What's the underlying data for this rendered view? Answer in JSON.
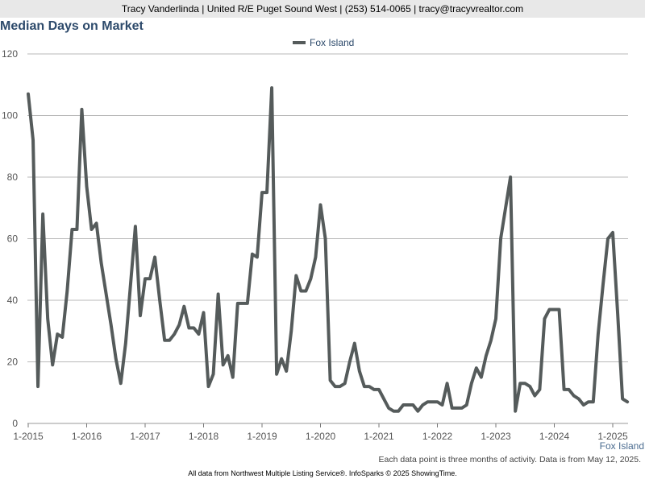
{
  "header": {
    "contact_line": "Tracy Vanderlinda | United R/E Puget Sound West | (253) 514-0065 | tracy@tracyvrealtor.com"
  },
  "chart_data": {
    "type": "line",
    "title": "Median Days on Market",
    "xlabel": "",
    "ylabel": "",
    "ylim": [
      0,
      120
    ],
    "y_ticks": [
      0,
      20,
      40,
      60,
      80,
      100,
      120
    ],
    "x_tick_labels": [
      "1-2015",
      "1-2016",
      "1-2017",
      "1-2018",
      "1-2019",
      "1-2020",
      "1-2021",
      "1-2022",
      "1-2023",
      "1-2024",
      "1-2025"
    ],
    "grid": true,
    "legend_position": "top-center",
    "series_color": "#555b5b",
    "series": [
      {
        "name": "Fox Island",
        "x": [
          "1-2015",
          "2-2015",
          "3-2015",
          "4-2015",
          "5-2015",
          "6-2015",
          "7-2015",
          "8-2015",
          "9-2015",
          "10-2015",
          "11-2015",
          "12-2015",
          "1-2016",
          "2-2016",
          "3-2016",
          "4-2016",
          "5-2016",
          "6-2016",
          "7-2016",
          "8-2016",
          "9-2016",
          "10-2016",
          "11-2016",
          "12-2016",
          "1-2017",
          "2-2017",
          "3-2017",
          "4-2017",
          "5-2017",
          "6-2017",
          "7-2017",
          "8-2017",
          "9-2017",
          "10-2017",
          "11-2017",
          "12-2017",
          "1-2018",
          "2-2018",
          "3-2018",
          "4-2018",
          "5-2018",
          "6-2018",
          "7-2018",
          "8-2018",
          "9-2018",
          "10-2018",
          "11-2018",
          "12-2018",
          "1-2019",
          "2-2019",
          "3-2019",
          "4-2019",
          "5-2019",
          "6-2019",
          "7-2019",
          "8-2019",
          "9-2019",
          "10-2019",
          "11-2019",
          "12-2019",
          "1-2020",
          "2-2020",
          "3-2020",
          "4-2020",
          "5-2020",
          "6-2020",
          "7-2020",
          "8-2020",
          "9-2020",
          "10-2020",
          "11-2020",
          "12-2020",
          "1-2021",
          "2-2021",
          "3-2021",
          "4-2021",
          "5-2021",
          "6-2021",
          "7-2021",
          "8-2021",
          "9-2021",
          "10-2021",
          "11-2021",
          "12-2021",
          "1-2022",
          "2-2022",
          "3-2022",
          "4-2022",
          "5-2022",
          "6-2022",
          "7-2022",
          "8-2022",
          "9-2022",
          "10-2022",
          "11-2022",
          "12-2022",
          "1-2023",
          "2-2023",
          "3-2023",
          "4-2023",
          "5-2023",
          "6-2023",
          "7-2023",
          "8-2023",
          "9-2023",
          "10-2023",
          "11-2023",
          "12-2023",
          "1-2024",
          "2-2024",
          "3-2024",
          "4-2024",
          "5-2024",
          "6-2024",
          "7-2024",
          "8-2024",
          "9-2024",
          "10-2024",
          "11-2024",
          "12-2024",
          "1-2025",
          "2-2025",
          "3-2025",
          "4-2025"
        ],
        "values": [
          107,
          92,
          12,
          68,
          34,
          19,
          29,
          28,
          43,
          63,
          63,
          102,
          77,
          63,
          65,
          52,
          42,
          32,
          21,
          13,
          26,
          45,
          64,
          35,
          47,
          47,
          54,
          40,
          27,
          27,
          29,
          32,
          38,
          31,
          31,
          29,
          36,
          12,
          16,
          42,
          19,
          22,
          15,
          39,
          39,
          39,
          55,
          54,
          75,
          75,
          109,
          16,
          21,
          17,
          30,
          48,
          43,
          43,
          47,
          54,
          71,
          60,
          14,
          12,
          12,
          13,
          20,
          26,
          17,
          12,
          12,
          11,
          11,
          8,
          5,
          4,
          4,
          6,
          6,
          6,
          4,
          6,
          7,
          7,
          7,
          6,
          13,
          5,
          5,
          5,
          6,
          13,
          18,
          15,
          22,
          27,
          34,
          60,
          70,
          80,
          4,
          13,
          13,
          12,
          9,
          11,
          34,
          37,
          37,
          37,
          11,
          11,
          9,
          8,
          6,
          7,
          7,
          29,
          45,
          60,
          62,
          36,
          8,
          7
        ]
      }
    ]
  },
  "series_end_label": "Fox Island",
  "note": "Each data point is three months of activity. Data is from May 12, 2025.",
  "footer": "All data from Northwest Multiple Listing Service®. InfoSparks © 2025 ShowingTime."
}
